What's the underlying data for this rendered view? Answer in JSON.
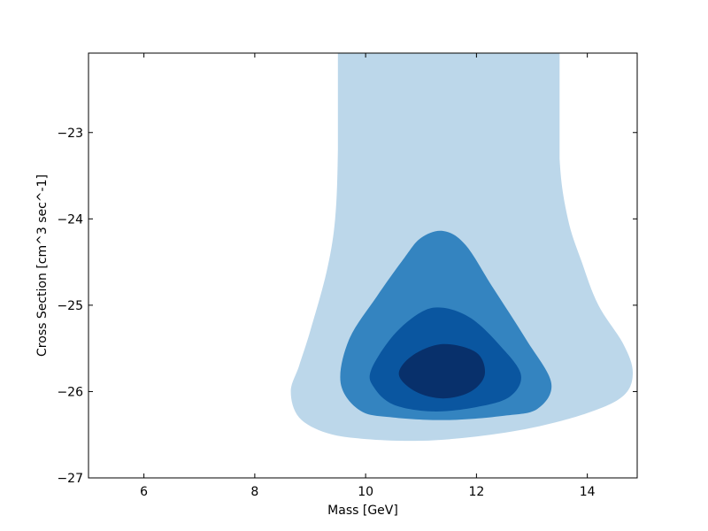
{
  "chart_data": {
    "type": "contour",
    "xlabel": "Mass [GeV]",
    "ylabel": "Cross Section [cm^3 sec^-1]",
    "xlim": [
      5,
      14.9
    ],
    "ylim": [
      -27,
      -22.08
    ],
    "x_ticks": [
      6,
      8,
      10,
      12,
      14
    ],
    "x_tick_labels": [
      "6",
      "8",
      "10",
      "12",
      "14"
    ],
    "y_ticks": [
      -27,
      -26,
      -25,
      -24,
      -23
    ],
    "y_tick_labels": [
      "−27",
      "−26",
      "−25",
      "−24",
      "−23"
    ],
    "grid": false,
    "levels": [
      {
        "color": "#bcd7ea",
        "boundary": [
          [
            9.5,
            -22.08
          ],
          [
            9.5,
            -23.2
          ],
          [
            9.45,
            -24.0
          ],
          [
            9.3,
            -24.6
          ],
          [
            9.0,
            -25.3
          ],
          [
            8.8,
            -25.7
          ],
          [
            8.65,
            -26.0
          ],
          [
            8.8,
            -26.3
          ],
          [
            9.3,
            -26.48
          ],
          [
            10.0,
            -26.55
          ],
          [
            11.0,
            -26.57
          ],
          [
            12.0,
            -26.52
          ],
          [
            13.0,
            -26.42
          ],
          [
            14.0,
            -26.25
          ],
          [
            14.65,
            -26.05
          ],
          [
            14.82,
            -25.78
          ],
          [
            14.65,
            -25.45
          ],
          [
            14.2,
            -25.0
          ],
          [
            13.9,
            -24.5
          ],
          [
            13.65,
            -24.0
          ],
          [
            13.5,
            -23.3
          ],
          [
            13.5,
            -22.08
          ]
        ]
      },
      {
        "color": "#3484c0",
        "boundary": [
          [
            9.55,
            -25.9
          ],
          [
            9.7,
            -25.4
          ],
          [
            10.2,
            -24.9
          ],
          [
            10.7,
            -24.45
          ],
          [
            11.0,
            -24.22
          ],
          [
            11.4,
            -24.14
          ],
          [
            11.8,
            -24.3
          ],
          [
            12.3,
            -24.8
          ],
          [
            12.9,
            -25.4
          ],
          [
            13.35,
            -25.9
          ],
          [
            13.1,
            -26.2
          ],
          [
            12.5,
            -26.28
          ],
          [
            11.5,
            -26.33
          ],
          [
            10.5,
            -26.3
          ],
          [
            9.9,
            -26.22
          ]
        ]
      },
      {
        "color": "#0a56a0",
        "boundary": [
          [
            10.1,
            -25.75
          ],
          [
            10.5,
            -25.35
          ],
          [
            11.0,
            -25.08
          ],
          [
            11.4,
            -25.03
          ],
          [
            11.9,
            -25.15
          ],
          [
            12.4,
            -25.45
          ],
          [
            12.8,
            -25.8
          ],
          [
            12.6,
            -26.06
          ],
          [
            12.0,
            -26.18
          ],
          [
            11.2,
            -26.23
          ],
          [
            10.5,
            -26.15
          ],
          [
            10.15,
            -25.95
          ]
        ]
      },
      {
        "color": "#08306b",
        "boundary": [
          [
            10.6,
            -25.8
          ],
          [
            10.85,
            -25.58
          ],
          [
            11.4,
            -25.45
          ],
          [
            12.0,
            -25.55
          ],
          [
            12.15,
            -25.8
          ],
          [
            11.9,
            -26.0
          ],
          [
            11.4,
            -26.08
          ],
          [
            10.9,
            -26.0
          ]
        ]
      }
    ]
  }
}
